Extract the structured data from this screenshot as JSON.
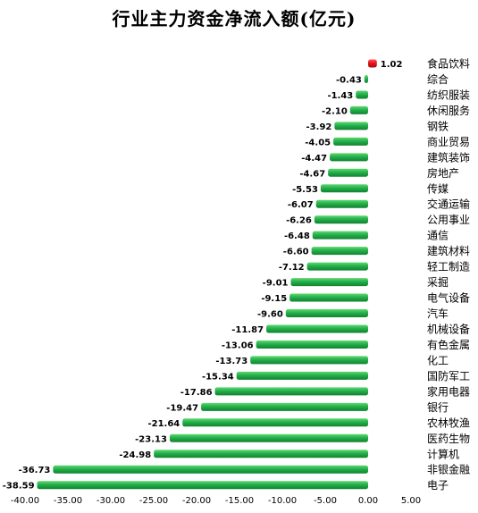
{
  "chart_data": {
    "type": "bar",
    "orientation": "horizontal",
    "title": "行业主力资金净流入额(亿元)",
    "categories": [
      "食品饮料",
      "综合",
      "纺织服装",
      "休闲服务",
      "钢铁",
      "商业贸易",
      "建筑装饰",
      "房地产",
      "传媒",
      "交通运输",
      "公用事业",
      "通信",
      "建筑材料",
      "轻工制造",
      "采掘",
      "电气设备",
      "汽车",
      "机械设备",
      "有色金属",
      "化工",
      "国防军工",
      "家用电器",
      "银行",
      "农林牧渔",
      "医药生物",
      "计算机",
      "非银金融",
      "电子"
    ],
    "value_labels": [
      "1.02",
      "-0.43",
      "-1.43",
      "-2.10",
      "-3.92",
      "-4.05",
      "-4.47",
      "-4.67",
      "-5.53",
      "-6.07",
      "-6.26",
      "-6.48",
      "-6.60",
      "-7.12",
      "-9.01",
      "-9.15",
      "-9.60",
      "-11.87",
      "-13.06",
      "-13.73",
      "-15.34",
      "-17.86",
      "-19.47",
      "-21.64",
      "-23.13",
      "-24.98",
      "-36.73",
      "-38.59"
    ],
    "values": [
      1.02,
      -0.43,
      -1.43,
      -2.1,
      -3.92,
      -4.05,
      -4.47,
      -4.67,
      -5.53,
      -6.07,
      -6.26,
      -6.48,
      -6.6,
      -7.12,
      -9.01,
      -9.15,
      -9.6,
      -11.87,
      -13.06,
      -13.73,
      -15.34,
      -17.86,
      -19.47,
      -21.64,
      -23.13,
      -24.98,
      -36.73,
      -38.59
    ],
    "xlim": [
      -40,
      5
    ],
    "x_ticks": [
      -40,
      -35,
      -30,
      -25,
      -20,
      -15,
      -10,
      -5,
      0,
      5
    ],
    "x_tick_labels": [
      "-40.00",
      "-35.00",
      "-30.00",
      "-25.00",
      "-20.00",
      "-15.00",
      "-10.00",
      "-5.00",
      "0.00",
      "5.00"
    ],
    "grid": false,
    "colors": {
      "negative": "#22b14c",
      "negative_dark": "#14802f",
      "negative_light": "#62d86f",
      "positive": "#e8151b",
      "positive_dark": "#a60d10",
      "positive_light": "#ff5a5a"
    }
  }
}
